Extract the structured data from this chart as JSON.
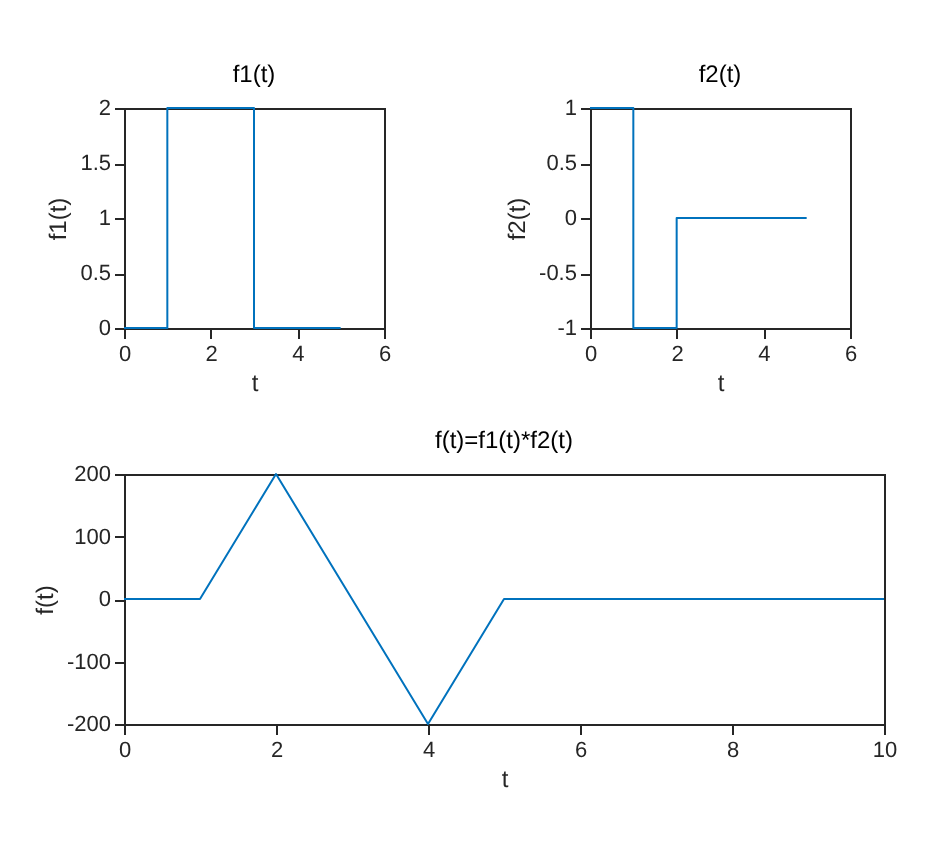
{
  "chart_data": [
    {
      "type": "line",
      "title": "f1(t)",
      "xlabel": "t",
      "ylabel": "f1(t)",
      "x": [
        0,
        1,
        1,
        3,
        3,
        5
      ],
      "xlim": [
        0,
        6
      ],
      "xticks": [
        0,
        2,
        4,
        6
      ],
      "ylim": [
        0,
        2
      ],
      "yticks": [
        0,
        0.5,
        1,
        1.5,
        2
      ],
      "series": [
        {
          "color": "#0072bd",
          "values": [
            0,
            0,
            2,
            2,
            0,
            0
          ]
        }
      ]
    },
    {
      "type": "line",
      "title": "f2(t)",
      "xlabel": "t",
      "ylabel": "f2(t)",
      "x": [
        0,
        1,
        1,
        2,
        2,
        5
      ],
      "xlim": [
        0,
        6
      ],
      "xticks": [
        0,
        2,
        4,
        6
      ],
      "ylim": [
        -1,
        1
      ],
      "yticks": [
        -1,
        -0.5,
        0,
        0.5,
        1
      ],
      "series": [
        {
          "color": "#0072bd",
          "values": [
            1,
            1,
            -1,
            -1,
            0,
            0
          ]
        }
      ]
    },
    {
      "type": "line",
      "title": "f(t)=f1(t)*f2(t)",
      "xlabel": "t",
      "ylabel": "f(t)",
      "x": [
        0,
        1,
        2,
        4,
        5,
        10
      ],
      "xlim": [
        0,
        10
      ],
      "xticks": [
        0,
        2,
        4,
        6,
        8,
        10
      ],
      "ylim": [
        -200,
        200
      ],
      "yticks": [
        -200,
        -100,
        0,
        100,
        200
      ],
      "series": [
        {
          "color": "#0072bd",
          "values": [
            0,
            0,
            200,
            -200,
            0,
            0
          ]
        }
      ]
    }
  ]
}
